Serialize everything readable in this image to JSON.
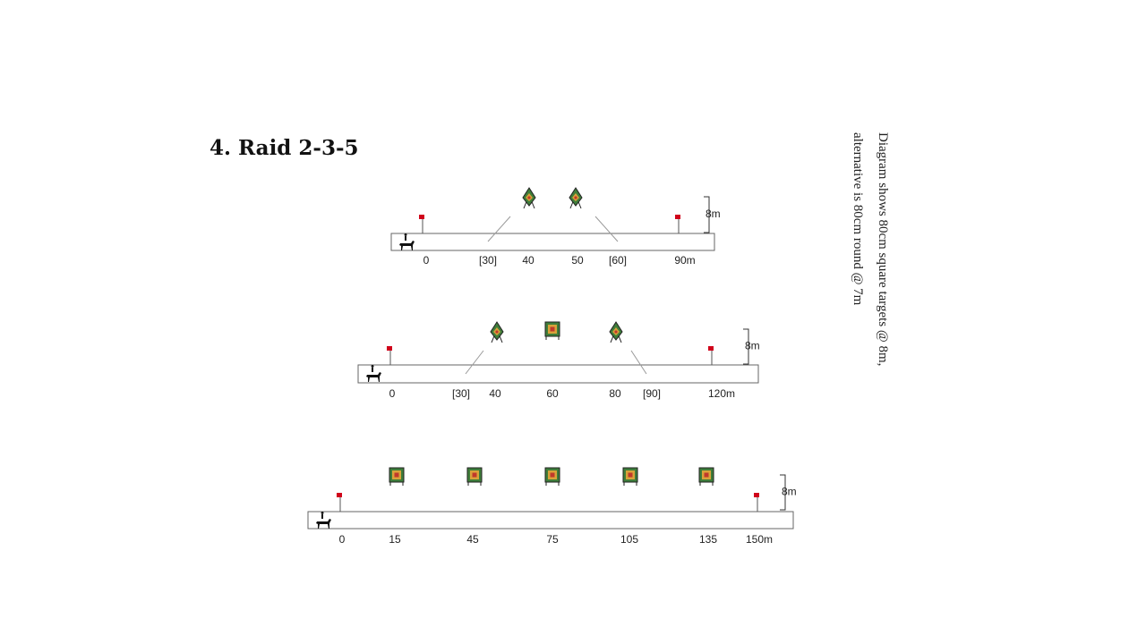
{
  "title": "4. Raid 2-3-5",
  "note_lines": [
    "Diagram shows 80cm square targets @ 8m,",
    "alternative is 80cm round @ 7m"
  ],
  "courses": [
    {
      "distance_labels": [
        "0",
        "[30]",
        "40",
        "50",
        "[60]",
        "90m"
      ],
      "height_label": "8m"
    },
    {
      "distance_labels": [
        "0",
        "[30]",
        "40",
        "60",
        "80",
        "[90]",
        "120m"
      ],
      "height_label": "8m"
    },
    {
      "distance_labels": [
        "0",
        "15",
        "45",
        "75",
        "105",
        "135",
        "150m"
      ],
      "height_label": "8m"
    }
  ]
}
